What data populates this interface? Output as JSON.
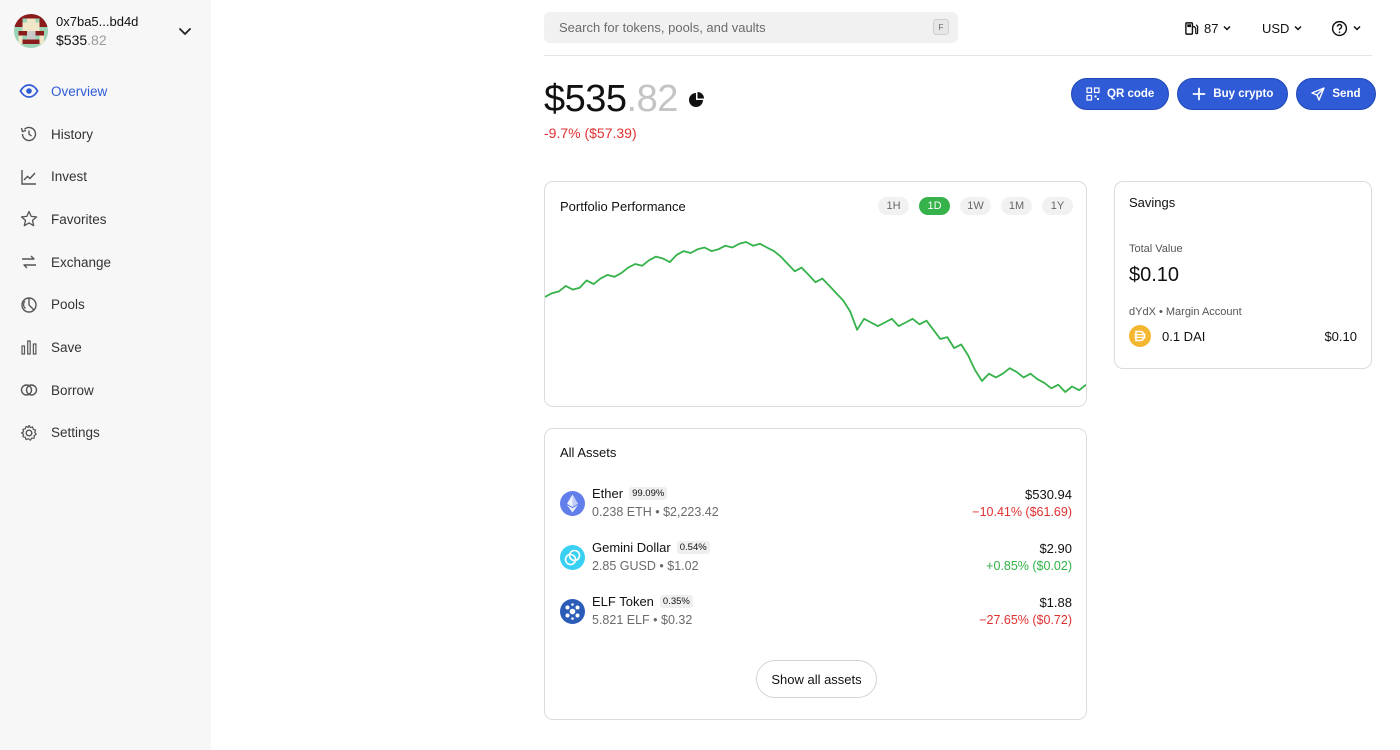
{
  "account": {
    "address": "0x7ba5...bd4d",
    "balance_whole": "$535",
    "balance_decimal": ".82",
    "avatar_icon": "pixel-avatar-icon"
  },
  "nav": {
    "items": [
      {
        "label": "Overview",
        "icon": "eye-icon",
        "active": true
      },
      {
        "label": "History",
        "icon": "history-icon"
      },
      {
        "label": "Invest",
        "icon": "chart-line-icon"
      },
      {
        "label": "Favorites",
        "icon": "star-icon"
      },
      {
        "label": "Exchange",
        "icon": "exchange-icon"
      },
      {
        "label": "Pools",
        "icon": "pools-icon"
      },
      {
        "label": "Save",
        "icon": "bars-icon"
      },
      {
        "label": "Borrow",
        "icon": "borrow-icon"
      },
      {
        "label": "Settings",
        "icon": "gear-icon"
      }
    ],
    "active_color": "#2f5bd6"
  },
  "header": {
    "search_placeholder": "Search for tokens, pools, and vaults",
    "search_shortcut": "F",
    "gas_value": "87",
    "currency": "USD"
  },
  "balance": {
    "whole": "$535",
    "decimal": ".82",
    "change": "-9.7% ($57.39)"
  },
  "actions": {
    "qr_label": "QR code",
    "buy_label": "Buy crypto",
    "send_label": "Send"
  },
  "performance": {
    "title": "Portfolio Performance",
    "timeframes": [
      "1H",
      "1D",
      "1W",
      "1M",
      "1Y"
    ],
    "active_timeframe": "1D",
    "line_color": "#36b24a"
  },
  "chart_data": {
    "type": "line",
    "title": "Portfolio Performance",
    "xlabel": "",
    "ylabel": "",
    "grid": false,
    "y": [
      70,
      72,
      73,
      76,
      74,
      75,
      79,
      77,
      80,
      82,
      81,
      83,
      86,
      88,
      87,
      90,
      92,
      91,
      89,
      93,
      95,
      94,
      96,
      97,
      95,
      96,
      98,
      97,
      99,
      100,
      98,
      99,
      97,
      95,
      92,
      88,
      84,
      86,
      82,
      78,
      80,
      76,
      72,
      68,
      62,
      52,
      58,
      56,
      54,
      56,
      58,
      54,
      56,
      58,
      55,
      57,
      52,
      47,
      48,
      42,
      44,
      38,
      30,
      24,
      28,
      26,
      28,
      31,
      29,
      26,
      28,
      25,
      23,
      20,
      22,
      18,
      21,
      19,
      22
    ]
  },
  "savings": {
    "title": "Savings",
    "total_value_label": "Total Value",
    "total_value": "$0.10",
    "account_label": "dYdX • Margin Account",
    "token": "0.1 DAI",
    "token_value": "$0.10"
  },
  "assets": {
    "title": "All Assets",
    "items": [
      {
        "name": "Ether",
        "pct": "99.09%",
        "sub": "0.238 ETH • $2,223.42",
        "value": "$530.94",
        "change": "−10.41% ($61.69)",
        "dir": "neg",
        "icon": "ether-icon"
      },
      {
        "name": "Gemini Dollar",
        "pct": "0.54%",
        "sub": "2.85 GUSD • $1.02",
        "value": "$2.90",
        "change": "+0.85% ($0.02)",
        "dir": "pos",
        "icon": "gemini-dollar-icon"
      },
      {
        "name": "ELF Token",
        "pct": "0.35%",
        "sub": "5.821 ELF • $0.32",
        "value": "$1.88",
        "change": "−27.65% ($0.72)",
        "dir": "neg",
        "icon": "elf-token-icon"
      }
    ],
    "show_all_label": "Show all assets"
  }
}
